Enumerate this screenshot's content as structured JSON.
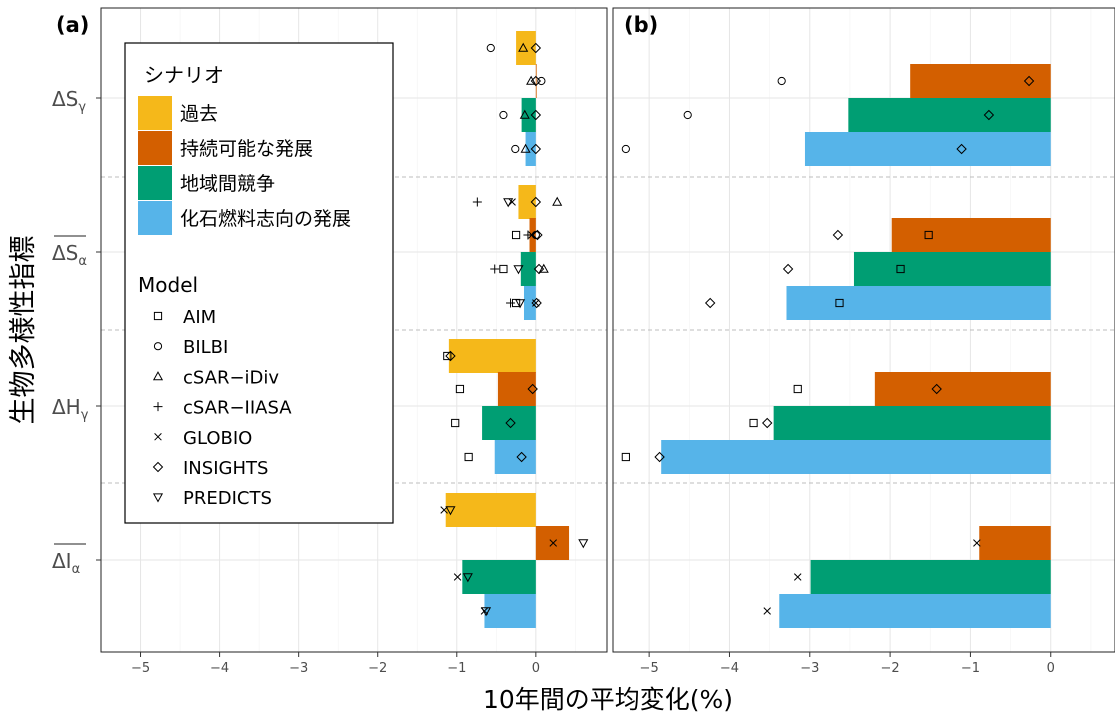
{
  "chart_data": {
    "type": "bar",
    "orientation": "horizontal",
    "xlabel": "10年間の平均変化(%)",
    "ylabel": "生物多様性指標",
    "grid": true,
    "indicators": [
      "ΔSγ",
      "ΔSα",
      "ΔHγ",
      "ΔIα"
    ],
    "scenarios": [
      {
        "name": "過去",
        "color": "#F5B81A"
      },
      {
        "name": "持続可能な発展",
        "color": "#D35F00"
      },
      {
        "name": "地域間競争",
        "color": "#009E73"
      },
      {
        "name": "化石燃料志向の発展",
        "color": "#56B4E9"
      }
    ],
    "models": [
      {
        "name": "AIM",
        "symbol": "square"
      },
      {
        "name": "BILBI",
        "symbol": "circle"
      },
      {
        "name": "cSAR−iDiv",
        "symbol": "triangle"
      },
      {
        "name": "cSAR−IIASA",
        "symbol": "plus"
      },
      {
        "name": "GLOBIO",
        "symbol": "cross"
      },
      {
        "name": "INSIGHTS",
        "symbol": "diamond"
      },
      {
        "name": "PREDICTS",
        "symbol": "triangle-down"
      }
    ],
    "legend": {
      "scenario_title": "シナリオ",
      "model_title": "Model",
      "placement": "top-left of panel (a)"
    },
    "panels": [
      {
        "label": "(a)",
        "xlim": [
          -5.5,
          0.9
        ],
        "xticks": [
          -5,
          -4,
          -3,
          -2,
          -1,
          0
        ],
        "xtick_labels": [
          "−5",
          "−4",
          "−3",
          "−2",
          "−1",
          "0"
        ],
        "bars": [
          [
            -0.25,
            0,
            -0.18,
            -0.13
          ],
          [
            -0.22,
            -0.08,
            -0.19,
            -0.15
          ],
          [
            -1.1,
            -0.48,
            -0.68,
            -0.52
          ],
          [
            -1.14,
            0.42,
            -0.93,
            -0.65
          ]
        ],
        "points": [
          [
            [
              {
                "model": "BILBI",
                "x": -0.57
              },
              {
                "model": "cSAR−iDiv",
                "x": -0.16
              },
              {
                "model": "INSIGHTS",
                "x": 0
              }
            ],
            [
              {
                "model": "cSAR−iDiv",
                "x": -0.06
              },
              {
                "model": "INSIGHTS",
                "x": 0
              },
              {
                "model": "BILBI",
                "x": 0.07
              }
            ],
            [
              {
                "model": "BILBI",
                "x": -0.41
              },
              {
                "model": "cSAR−iDiv",
                "x": -0.14
              },
              {
                "model": "INSIGHTS",
                "x": 0
              }
            ],
            [
              {
                "model": "BILBI",
                "x": -0.26
              },
              {
                "model": "cSAR−iDiv",
                "x": -0.13
              },
              {
                "model": "INSIGHTS",
                "x": 0
              }
            ]
          ],
          [
            [
              {
                "model": "cSAR−IIASA",
                "x": -0.74
              },
              {
                "model": "PREDICTS",
                "x": -0.35
              },
              {
                "model": "GLOBIO",
                "x": -0.3
              },
              {
                "model": "INSIGHTS",
                "x": 0
              },
              {
                "model": "cSAR−iDiv",
                "x": 0.27
              }
            ],
            [
              {
                "model": "AIM",
                "x": -0.25
              },
              {
                "model": "cSAR−IIASA",
                "x": -0.1
              },
              {
                "model": "GLOBIO",
                "x": -0.05
              },
              {
                "model": "BILBI",
                "x": 0
              },
              {
                "model": "INSIGHTS",
                "x": 0.02
              }
            ],
            [
              {
                "model": "cSAR−IIASA",
                "x": -0.52
              },
              {
                "model": "AIM",
                "x": -0.41
              },
              {
                "model": "PREDICTS",
                "x": -0.22
              },
              {
                "model": "INSIGHTS",
                "x": 0.04
              },
              {
                "model": "cSAR−iDiv",
                "x": 0.1
              }
            ],
            [
              {
                "model": "cSAR−IIASA",
                "x": -0.32
              },
              {
                "model": "AIM",
                "x": -0.25
              },
              {
                "model": "PREDICTS",
                "x": -0.2
              },
              {
                "model": "GLOBIO",
                "x": 0
              },
              {
                "model": "INSIGHTS",
                "x": 0.01
              }
            ]
          ],
          [
            [
              {
                "model": "AIM",
                "x": -1.12
              },
              {
                "model": "INSIGHTS",
                "x": -1.08
              }
            ],
            [
              {
                "model": "AIM",
                "x": -0.96
              },
              {
                "model": "INSIGHTS",
                "x": -0.04
              }
            ],
            [
              {
                "model": "AIM",
                "x": -1.02
              },
              {
                "model": "INSIGHTS",
                "x": -0.32
              }
            ],
            [
              {
                "model": "AIM",
                "x": -0.85
              },
              {
                "model": "INSIGHTS",
                "x": -0.18
              }
            ]
          ],
          [
            [
              {
                "model": "GLOBIO",
                "x": -1.16
              },
              {
                "model": "PREDICTS",
                "x": -1.08
              }
            ],
            [
              {
                "model": "GLOBIO",
                "x": 0.22
              },
              {
                "model": "PREDICTS",
                "x": 0.6
              }
            ],
            [
              {
                "model": "GLOBIO",
                "x": -0.99
              },
              {
                "model": "PREDICTS",
                "x": -0.86
              }
            ],
            [
              {
                "model": "GLOBIO",
                "x": -0.65
              },
              {
                "model": "PREDICTS",
                "x": -0.63
              }
            ]
          ]
        ]
      },
      {
        "label": "(b)",
        "xlim": [
          -5.45,
          0.8
        ],
        "xticks": [
          -5,
          -4,
          -3,
          -2,
          -1,
          0
        ],
        "xtick_labels": [
          "−5",
          "−4",
          "−3",
          "−2",
          "−1",
          "0"
        ],
        "bars": [
          [
            null,
            -1.75,
            -2.52,
            -3.06
          ],
          [
            null,
            -1.98,
            -2.45,
            -3.29
          ],
          [
            null,
            -2.19,
            -3.45,
            -4.85
          ],
          [
            null,
            -0.89,
            -2.99,
            -3.38
          ]
        ],
        "points": [
          [
            [],
            [
              {
                "model": "BILBI",
                "x": -3.35
              },
              {
                "model": "INSIGHTS",
                "x": -0.27
              }
            ],
            [
              {
                "model": "BILBI",
                "x": -4.52
              },
              {
                "model": "INSIGHTS",
                "x": -0.77
              }
            ],
            [
              {
                "model": "BILBI",
                "x": -5.29
              },
              {
                "model": "INSIGHTS",
                "x": -1.11
              }
            ]
          ],
          [
            [],
            [
              {
                "model": "INSIGHTS",
                "x": -2.65
              },
              {
                "model": "AIM",
                "x": -1.52
              }
            ],
            [
              {
                "model": "INSIGHTS",
                "x": -3.27
              },
              {
                "model": "AIM",
                "x": -1.87
              }
            ],
            [
              {
                "model": "INSIGHTS",
                "x": -4.24
              },
              {
                "model": "AIM",
                "x": -2.63
              }
            ]
          ],
          [
            [],
            [
              {
                "model": "AIM",
                "x": -3.15
              },
              {
                "model": "INSIGHTS",
                "x": -1.42
              }
            ],
            [
              {
                "model": "AIM",
                "x": -3.7
              },
              {
                "model": "INSIGHTS",
                "x": -3.53
              }
            ],
            [
              {
                "model": "AIM",
                "x": -5.29
              },
              {
                "model": "INSIGHTS",
                "x": -4.87
              }
            ]
          ],
          [
            [],
            [
              {
                "model": "GLOBIO",
                "x": -0.92
              }
            ],
            [
              {
                "model": "GLOBIO",
                "x": -3.15
              }
            ],
            [
              {
                "model": "GLOBIO",
                "x": -3.53
              }
            ]
          ]
        ]
      }
    ]
  }
}
